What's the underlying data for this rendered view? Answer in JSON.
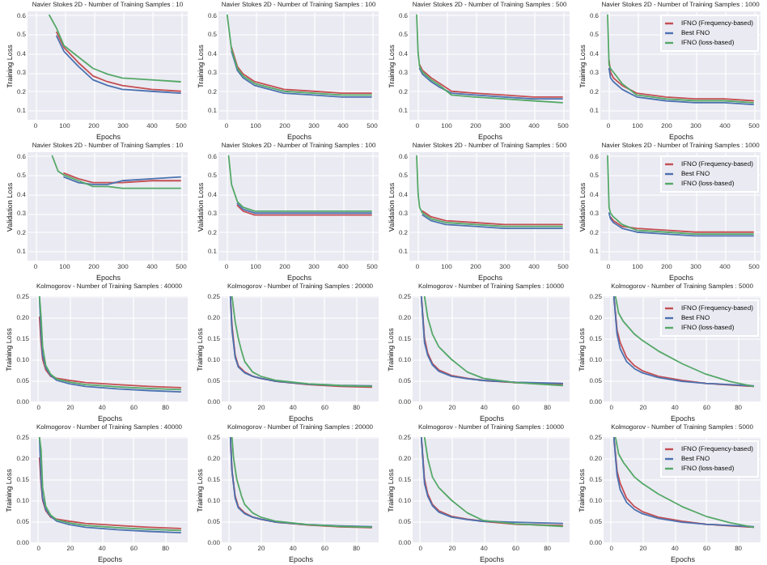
{
  "chart_data": [
    {
      "type": "line",
      "title": "Navier Stokes 2D - Number of Training Samples : 10",
      "xlabel": "Epochs",
      "ylabel": "Training Loss",
      "xlim": [
        -25,
        525
      ],
      "xticks": [
        0,
        100,
        200,
        300,
        400,
        500
      ],
      "ylim": [
        0.05,
        0.62
      ],
      "yticks": [
        0.1,
        0.2,
        0.3,
        0.4,
        0.5,
        0.6
      ],
      "grid": true,
      "x": [
        50,
        75,
        100,
        150,
        200,
        250,
        300,
        400,
        500
      ],
      "series": [
        {
          "color": "#c44e52",
          "values": [
            null,
            0.51,
            0.43,
            0.35,
            0.28,
            0.25,
            0.23,
            0.21,
            0.2
          ]
        },
        {
          "color": "#4c72b0",
          "values": [
            null,
            0.49,
            0.41,
            0.33,
            0.26,
            0.23,
            0.21,
            0.2,
            0.19
          ]
        },
        {
          "color": "#55a868",
          "values": [
            0.6,
            0.53,
            0.44,
            0.38,
            0.32,
            0.29,
            0.27,
            0.26,
            0.25
          ]
        }
      ]
    },
    {
      "type": "line",
      "title": "Navier Stokes 2D - Number of Training Samples : 100",
      "xlabel": "Epochs",
      "ylabel": "Training Loss",
      "xlim": [
        -25,
        525
      ],
      "xticks": [
        0,
        100,
        200,
        300,
        400,
        500
      ],
      "ylim": [
        0.05,
        0.62
      ],
      "yticks": [
        0.1,
        0.2,
        0.3,
        0.4,
        0.5,
        0.6
      ],
      "grid": true,
      "x": [
        5,
        20,
        40,
        60,
        100,
        150,
        200,
        300,
        400,
        500
      ],
      "series": [
        {
          "color": "#c44e52",
          "values": [
            null,
            0.43,
            0.33,
            0.29,
            0.25,
            0.23,
            0.21,
            0.2,
            0.19,
            0.19
          ]
        },
        {
          "color": "#4c72b0",
          "values": [
            null,
            0.41,
            0.31,
            0.27,
            0.23,
            0.21,
            0.19,
            0.18,
            0.17,
            0.17
          ]
        },
        {
          "color": "#55a868",
          "values": [
            0.6,
            0.42,
            0.32,
            0.28,
            0.24,
            0.22,
            0.2,
            0.19,
            0.18,
            0.18
          ]
        }
      ]
    },
    {
      "type": "line",
      "title": "Navier Stokes 2D - Number of Training Samples : 500",
      "xlabel": "Epochs",
      "ylabel": "Training Loss",
      "xlim": [
        -25,
        525
      ],
      "xticks": [
        0,
        100,
        200,
        300,
        400,
        500
      ],
      "ylim": [
        0.05,
        0.62
      ],
      "yticks": [
        0.1,
        0.2,
        0.3,
        0.4,
        0.5,
        0.6
      ],
      "grid": true,
      "x": [
        0,
        5,
        10,
        20,
        50,
        80,
        120,
        200,
        300,
        400,
        500
      ],
      "series": [
        {
          "color": "#c44e52",
          "values": [
            null,
            null,
            0.34,
            0.31,
            0.27,
            0.24,
            0.2,
            0.19,
            0.18,
            0.17,
            0.17
          ]
        },
        {
          "color": "#4c72b0",
          "values": [
            null,
            null,
            0.32,
            0.29,
            0.25,
            0.22,
            0.19,
            0.18,
            0.17,
            0.16,
            0.16
          ]
        },
        {
          "color": "#55a868",
          "values": [
            0.6,
            0.4,
            0.33,
            0.3,
            0.26,
            0.23,
            0.18,
            0.17,
            0.16,
            0.15,
            0.14
          ]
        }
      ]
    },
    {
      "type": "line",
      "title": "Navier Stokes 2D - Number of Training Samples : 1000",
      "xlabel": "Epochs",
      "ylabel": "Training Loss",
      "xlim": [
        -25,
        525
      ],
      "xticks": [
        0,
        100,
        200,
        300,
        400,
        500
      ],
      "ylim": [
        0.05,
        0.62
      ],
      "yticks": [
        0.1,
        0.2,
        0.3,
        0.4,
        0.5,
        0.6
      ],
      "grid": true,
      "legend": "top right",
      "x": [
        0,
        5,
        10,
        20,
        50,
        100,
        200,
        300,
        400,
        500
      ],
      "series": [
        {
          "name": "IFNO (Frequency-based)",
          "color": "#c44e52",
          "values": [
            null,
            0.36,
            0.3,
            0.27,
            0.23,
            0.19,
            0.17,
            0.16,
            0.16,
            0.15
          ]
        },
        {
          "name": "Best FNO",
          "color": "#4c72b0",
          "values": [
            null,
            0.32,
            0.27,
            0.25,
            0.21,
            0.17,
            0.15,
            0.14,
            0.14,
            0.13
          ]
        },
        {
          "name": "IFNO (loss-based)",
          "color": "#55a868",
          "values": [
            0.6,
            0.34,
            0.32,
            0.3,
            0.24,
            0.18,
            0.16,
            0.15,
            0.15,
            0.14
          ]
        }
      ]
    },
    {
      "type": "line",
      "title": "Navier Stokes 2D - Number of Training Samples : 10",
      "xlabel": "Epochs",
      "ylabel": "Validation Loss",
      "xlim": [
        -25,
        525
      ],
      "xticks": [
        0,
        100,
        200,
        300,
        400,
        500
      ],
      "ylim": [
        0.05,
        0.62
      ],
      "yticks": [
        0.1,
        0.2,
        0.3,
        0.4,
        0.5,
        0.6
      ],
      "grid": true,
      "x": [
        60,
        80,
        100,
        150,
        200,
        250,
        300,
        400,
        500
      ],
      "series": [
        {
          "color": "#c44e52",
          "values": [
            null,
            null,
            0.51,
            0.48,
            0.46,
            0.46,
            0.46,
            0.47,
            0.47
          ]
        },
        {
          "color": "#4c72b0",
          "values": [
            null,
            null,
            0.49,
            0.46,
            0.45,
            0.45,
            0.47,
            0.48,
            0.49
          ]
        },
        {
          "color": "#55a868",
          "values": [
            0.6,
            0.52,
            0.5,
            0.47,
            0.44,
            0.44,
            0.43,
            0.43,
            0.43
          ]
        }
      ]
    },
    {
      "type": "line",
      "title": "Navier Stokes 2D - Number of Training Samples : 100",
      "xlabel": "Epochs",
      "ylabel": "Validation Loss",
      "xlim": [
        -25,
        525
      ],
      "xticks": [
        0,
        100,
        200,
        300,
        400,
        500
      ],
      "ylim": [
        0.05,
        0.62
      ],
      "yticks": [
        0.1,
        0.2,
        0.3,
        0.4,
        0.5,
        0.6
      ],
      "grid": true,
      "x": [
        10,
        20,
        40,
        60,
        100,
        150,
        200,
        300,
        400,
        500
      ],
      "series": [
        {
          "color": "#c44e52",
          "values": [
            null,
            null,
            0.34,
            0.31,
            0.29,
            0.29,
            0.29,
            0.29,
            0.29,
            0.29
          ]
        },
        {
          "color": "#4c72b0",
          "values": [
            null,
            null,
            0.35,
            0.32,
            0.3,
            0.3,
            0.3,
            0.3,
            0.3,
            0.3
          ]
        },
        {
          "color": "#55a868",
          "values": [
            0.6,
            0.45,
            0.36,
            0.33,
            0.31,
            0.31,
            0.31,
            0.31,
            0.31,
            0.31
          ]
        }
      ]
    },
    {
      "type": "line",
      "title": "Navier Stokes 2D - Number of Training Samples : 500",
      "xlabel": "Epochs",
      "ylabel": "Validation Loss",
      "xlim": [
        -25,
        525
      ],
      "xticks": [
        0,
        100,
        200,
        300,
        400,
        500
      ],
      "ylim": [
        0.05,
        0.62
      ],
      "yticks": [
        0.1,
        0.2,
        0.3,
        0.4,
        0.5,
        0.6
      ],
      "grid": true,
      "x": [
        0,
        5,
        10,
        20,
        50,
        100,
        200,
        300,
        400,
        500
      ],
      "series": [
        {
          "color": "#c44e52",
          "values": [
            null,
            null,
            null,
            0.31,
            0.28,
            0.26,
            0.25,
            0.24,
            0.24,
            0.24
          ]
        },
        {
          "color": "#4c72b0",
          "values": [
            null,
            null,
            null,
            0.29,
            0.26,
            0.24,
            0.23,
            0.22,
            0.22,
            0.22
          ]
        },
        {
          "color": "#55a868",
          "values": [
            0.6,
            0.4,
            0.33,
            0.3,
            0.27,
            0.25,
            0.24,
            0.23,
            0.23,
            0.23
          ]
        }
      ]
    },
    {
      "type": "line",
      "title": "Navier Stokes 2D - Number of Training Samples : 1000",
      "xlabel": "Epochs",
      "ylabel": "Validation Loss",
      "xlim": [
        -25,
        525
      ],
      "xticks": [
        0,
        100,
        200,
        300,
        400,
        500
      ],
      "ylim": [
        0.05,
        0.62
      ],
      "yticks": [
        0.1,
        0.2,
        0.3,
        0.4,
        0.5,
        0.6
      ],
      "grid": true,
      "legend": "top right",
      "x": [
        0,
        5,
        10,
        20,
        50,
        100,
        200,
        300,
        400,
        500
      ],
      "series": [
        {
          "name": "IFNO (Frequency-based)",
          "color": "#c44e52",
          "values": [
            null,
            null,
            0.28,
            0.26,
            0.23,
            0.22,
            0.21,
            0.2,
            0.2,
            0.2
          ]
        },
        {
          "name": "Best FNO",
          "color": "#4c72b0",
          "values": [
            null,
            0.3,
            0.27,
            0.25,
            0.22,
            0.2,
            0.19,
            0.18,
            0.18,
            0.18
          ]
        },
        {
          "name": "IFNO (loss-based)",
          "color": "#55a868",
          "values": [
            0.6,
            0.33,
            0.3,
            0.28,
            0.24,
            0.21,
            0.2,
            0.19,
            0.19,
            0.19
          ]
        }
      ]
    },
    {
      "type": "line",
      "title": "Kolmogorov - Number of Training Samples : 40000",
      "xlabel": "Epochs",
      "ylabel": "Training Loss",
      "xlim": [
        -4.5,
        94.5
      ],
      "xticks": [
        0,
        20,
        40,
        60,
        80
      ],
      "ylim": [
        0,
        0.25
      ],
      "yticks": [
        {
          "value": 0,
          "label": "0.00"
        },
        {
          "value": 0.05,
          "label": "0.05"
        },
        {
          "value": 0.1,
          "label": "0.10"
        },
        {
          "value": 0.15,
          "label": "0.15"
        },
        {
          "value": 0.2,
          "label": "0.20"
        },
        {
          "value": 0.25,
          "label": "0.25"
        }
      ],
      "grid": true,
      "x": [
        1,
        2,
        3,
        5,
        8,
        12,
        20,
        30,
        50,
        70,
        90
      ],
      "series": [
        {
          "color": "#c44e52",
          "values": [
            0.2,
            0.14,
            0.1,
            0.075,
            0.06,
            0.055,
            0.05,
            0.045,
            0.04,
            0.036,
            0.033
          ]
        },
        {
          "color": "#4c72b0",
          "values": [
            0.25,
            0.16,
            0.11,
            0.08,
            0.062,
            0.05,
            0.042,
            0.036,
            0.03,
            0.026,
            0.023
          ]
        },
        {
          "color": "#55a868",
          "values": [
            0.25,
            0.2,
            0.13,
            0.085,
            0.065,
            0.053,
            0.046,
            0.04,
            0.035,
            0.031,
            0.028
          ]
        }
      ]
    },
    {
      "type": "line",
      "title": "Kolmogorov - Number of Training Samples : 20000",
      "xlabel": "Epochs",
      "ylabel": "Training Loss",
      "xlim": [
        -4.5,
        94.5
      ],
      "xticks": [
        0,
        20,
        40,
        60,
        80
      ],
      "ylim": [
        0,
        0.25
      ],
      "yticks": [
        {
          "value": 0,
          "label": "0.00"
        },
        {
          "value": 0.05,
          "label": "0.05"
        },
        {
          "value": 0.1,
          "label": "0.10"
        },
        {
          "value": 0.15,
          "label": "0.15"
        },
        {
          "value": 0.2,
          "label": "0.20"
        },
        {
          "value": 0.25,
          "label": "0.25"
        }
      ],
      "grid": true,
      "x": [
        1,
        2,
        4,
        6,
        10,
        15,
        20,
        30,
        50,
        70,
        90
      ],
      "series": [
        {
          "color": "#c44e52",
          "values": [
            0.25,
            0.18,
            0.11,
            0.085,
            0.07,
            0.06,
            0.055,
            0.048,
            0.04,
            0.036,
            0.034
          ]
        },
        {
          "color": "#4c72b0",
          "values": [
            0.25,
            0.17,
            0.105,
            0.082,
            0.068,
            0.06,
            0.055,
            0.048,
            0.041,
            0.038,
            0.037
          ]
        },
        {
          "color": "#55a868",
          "x": [
            2,
            4,
            6,
            8,
            10,
            15,
            20,
            30,
            50,
            70,
            90
          ],
          "values": [
            0.25,
            0.19,
            0.15,
            0.12,
            0.095,
            0.07,
            0.06,
            0.05,
            0.042,
            0.038,
            0.036
          ]
        }
      ]
    },
    {
      "type": "line",
      "title": "Kolmogorov - Number of Training Samples : 10000",
      "xlabel": "Epochs",
      "ylabel": "Training Loss",
      "xlim": [
        -4.5,
        94.5
      ],
      "xticks": [
        0,
        20,
        40,
        60,
        80
      ],
      "ylim": [
        0,
        0.25
      ],
      "yticks": [
        {
          "value": 0,
          "label": "0.00"
        },
        {
          "value": 0.05,
          "label": "0.05"
        },
        {
          "value": 0.1,
          "label": "0.10"
        },
        {
          "value": 0.15,
          "label": "0.15"
        },
        {
          "value": 0.2,
          "label": "0.20"
        },
        {
          "value": 0.25,
          "label": "0.25"
        }
      ],
      "grid": true,
      "x": [
        1,
        3,
        5,
        8,
        12,
        20,
        30,
        40,
        60,
        90
      ],
      "series": [
        {
          "color": "#c44e52",
          "values": [
            0.25,
            0.15,
            0.115,
            0.09,
            0.075,
            0.062,
            0.055,
            0.05,
            0.045,
            0.041
          ]
        },
        {
          "color": "#4c72b0",
          "values": [
            0.25,
            0.14,
            0.11,
            0.087,
            0.072,
            0.06,
            0.054,
            0.05,
            0.046,
            0.043
          ]
        },
        {
          "color": "#55a868",
          "x": [
            3,
            5,
            8,
            12,
            20,
            30,
            40,
            60,
            90
          ],
          "values": [
            0.25,
            0.2,
            0.16,
            0.13,
            0.1,
            0.07,
            0.055,
            0.045,
            0.038
          ]
        }
      ]
    },
    {
      "type": "line",
      "title": "Kolmogorov - Number of Training Samples : 5000",
      "xlabel": "Epochs",
      "ylabel": "Training Loss",
      "xlim": [
        -4.5,
        94.5
      ],
      "xticks": [
        0,
        20,
        40,
        60,
        80
      ],
      "ylim": [
        0,
        0.25
      ],
      "yticks": [
        {
          "value": 0,
          "label": "0.00"
        },
        {
          "value": 0.05,
          "label": "0.05"
        },
        {
          "value": 0.1,
          "label": "0.10"
        },
        {
          "value": 0.15,
          "label": "0.15"
        },
        {
          "value": 0.2,
          "label": "0.20"
        },
        {
          "value": 0.25,
          "label": "0.25"
        }
      ],
      "grid": true,
      "legend": "top right",
      "x": [
        2,
        4,
        6,
        10,
        15,
        20,
        30,
        45,
        60,
        75,
        90
      ],
      "series": [
        {
          "name": "IFNO (Frequency-based)",
          "color": "#c44e52",
          "values": [
            0.25,
            0.17,
            0.14,
            0.105,
            0.085,
            0.073,
            0.06,
            0.05,
            0.043,
            0.039,
            0.036
          ]
        },
        {
          "name": "Best FNO",
          "color": "#4c72b0",
          "values": [
            0.25,
            0.16,
            0.125,
            0.095,
            0.078,
            0.068,
            0.057,
            0.048,
            0.043,
            0.04,
            0.037
          ]
        },
        {
          "name": "IFNO (loss-based)",
          "color": "#55a868",
          "x": [
            3,
            5,
            8,
            15,
            20,
            30,
            45,
            60,
            75,
            90
          ],
          "values": [
            0.25,
            0.21,
            0.19,
            0.16,
            0.145,
            0.12,
            0.09,
            0.065,
            0.048,
            0.036
          ]
        }
      ]
    },
    {
      "type": "line",
      "title": "Kolmogorov - Number of Training Samples : 40000",
      "xlabel": "Epochs",
      "ylabel": "Training Loss",
      "xlim": [
        -4.5,
        94.5
      ],
      "xticks": [
        0,
        20,
        40,
        60,
        80
      ],
      "ylim": [
        0,
        0.25
      ],
      "yticks": [
        {
          "value": 0,
          "label": "0.00"
        },
        {
          "value": 0.05,
          "label": "0.05"
        },
        {
          "value": 0.1,
          "label": "0.10"
        },
        {
          "value": 0.15,
          "label": "0.15"
        },
        {
          "value": 0.2,
          "label": "0.20"
        },
        {
          "value": 0.25,
          "label": "0.25"
        }
      ],
      "grid": true,
      "x": [
        1,
        2,
        3,
        5,
        8,
        12,
        20,
        30,
        50,
        70,
        90
      ],
      "series": [
        {
          "color": "#c44e52",
          "values": [
            0.2,
            0.14,
            0.1,
            0.075,
            0.06,
            0.055,
            0.05,
            0.045,
            0.04,
            0.036,
            0.033
          ]
        },
        {
          "color": "#4c72b0",
          "values": [
            0.25,
            0.15,
            0.105,
            0.078,
            0.062,
            0.05,
            0.042,
            0.036,
            0.03,
            0.026,
            0.023
          ]
        },
        {
          "color": "#55a868",
          "values": [
            0.25,
            0.22,
            0.13,
            0.085,
            0.065,
            0.053,
            0.046,
            0.04,
            0.035,
            0.031,
            0.028
          ]
        }
      ]
    },
    {
      "type": "line",
      "title": "Kolmogorov - Number of Training Samples : 20000",
      "xlabel": "Epochs",
      "ylabel": "Training Loss",
      "xlim": [
        -4.5,
        94.5
      ],
      "xticks": [
        0,
        20,
        40,
        60,
        80
      ],
      "ylim": [
        0,
        0.25
      ],
      "yticks": [
        {
          "value": 0,
          "label": "0.00"
        },
        {
          "value": 0.05,
          "label": "0.05"
        },
        {
          "value": 0.1,
          "label": "0.10"
        },
        {
          "value": 0.15,
          "label": "0.15"
        },
        {
          "value": 0.2,
          "label": "0.20"
        },
        {
          "value": 0.25,
          "label": "0.25"
        }
      ],
      "grid": true,
      "x": [
        1,
        2,
        4,
        6,
        10,
        15,
        20,
        30,
        50,
        70,
        90
      ],
      "series": [
        {
          "color": "#c44e52",
          "values": [
            0.25,
            0.17,
            0.11,
            0.085,
            0.07,
            0.06,
            0.055,
            0.048,
            0.041,
            0.037,
            0.035
          ]
        },
        {
          "color": "#4c72b0",
          "values": [
            0.25,
            0.17,
            0.105,
            0.082,
            0.068,
            0.06,
            0.055,
            0.048,
            0.042,
            0.039,
            0.037
          ]
        },
        {
          "color": "#55a868",
          "x": [
            2,
            3,
            5,
            8,
            10,
            15,
            20,
            30,
            50,
            70,
            90
          ],
          "values": [
            0.25,
            0.2,
            0.15,
            0.11,
            0.09,
            0.07,
            0.06,
            0.05,
            0.042,
            0.038,
            0.036
          ]
        }
      ]
    },
    {
      "type": "line",
      "title": "Kolmogorov - Number of Training Samples : 10000",
      "xlabel": "Epochs",
      "ylabel": "Training Loss",
      "xlim": [
        -4.5,
        94.5
      ],
      "xticks": [
        0,
        20,
        40,
        60,
        80
      ],
      "ylim": [
        0,
        0.25
      ],
      "yticks": [
        {
          "value": 0,
          "label": "0.00"
        },
        {
          "value": 0.05,
          "label": "0.05"
        },
        {
          "value": 0.1,
          "label": "0.10"
        },
        {
          "value": 0.15,
          "label": "0.15"
        },
        {
          "value": 0.2,
          "label": "0.20"
        },
        {
          "value": 0.25,
          "label": "0.25"
        }
      ],
      "grid": true,
      "x": [
        1,
        3,
        5,
        8,
        12,
        20,
        30,
        40,
        60,
        90
      ],
      "series": [
        {
          "color": "#c44e52",
          "values": [
            0.25,
            0.15,
            0.115,
            0.09,
            0.075,
            0.062,
            0.055,
            0.05,
            0.043,
            0.04
          ]
        },
        {
          "color": "#4c72b0",
          "values": [
            0.25,
            0.14,
            0.11,
            0.087,
            0.072,
            0.06,
            0.054,
            0.05,
            0.048,
            0.045
          ]
        },
        {
          "color": "#55a868",
          "x": [
            3,
            5,
            8,
            12,
            20,
            30,
            40,
            60,
            90
          ],
          "values": [
            0.25,
            0.2,
            0.155,
            0.13,
            0.1,
            0.07,
            0.052,
            0.044,
            0.038
          ]
        }
      ]
    },
    {
      "type": "line",
      "title": "Kolmogorov - Number of Training Samples : 5000",
      "xlabel": "Epochs",
      "ylabel": "Training Loss",
      "xlim": [
        -4.5,
        94.5
      ],
      "xticks": [
        0,
        20,
        40,
        60,
        80
      ],
      "ylim": [
        0,
        0.25
      ],
      "yticks": [
        {
          "value": 0,
          "label": "0.00"
        },
        {
          "value": 0.05,
          "label": "0.05"
        },
        {
          "value": 0.1,
          "label": "0.10"
        },
        {
          "value": 0.15,
          "label": "0.15"
        },
        {
          "value": 0.2,
          "label": "0.20"
        },
        {
          "value": 0.25,
          "label": "0.25"
        }
      ],
      "grid": true,
      "legend": "top right",
      "x": [
        2,
        4,
        6,
        10,
        15,
        20,
        30,
        45,
        60,
        75,
        90
      ],
      "series": [
        {
          "name": "IFNO (Frequency-based)",
          "color": "#c44e52",
          "values": [
            0.25,
            0.17,
            0.14,
            0.105,
            0.085,
            0.073,
            0.06,
            0.05,
            0.043,
            0.039,
            0.036
          ]
        },
        {
          "name": "Best FNO",
          "color": "#4c72b0",
          "values": [
            0.25,
            0.16,
            0.125,
            0.095,
            0.078,
            0.068,
            0.057,
            0.048,
            0.043,
            0.04,
            0.037
          ]
        },
        {
          "name": "IFNO (loss-based)",
          "color": "#55a868",
          "x": [
            3,
            5,
            8,
            15,
            20,
            30,
            45,
            60,
            75,
            90
          ],
          "values": [
            0.25,
            0.21,
            0.19,
            0.155,
            0.14,
            0.115,
            0.085,
            0.062,
            0.047,
            0.036
          ]
        }
      ]
    }
  ]
}
